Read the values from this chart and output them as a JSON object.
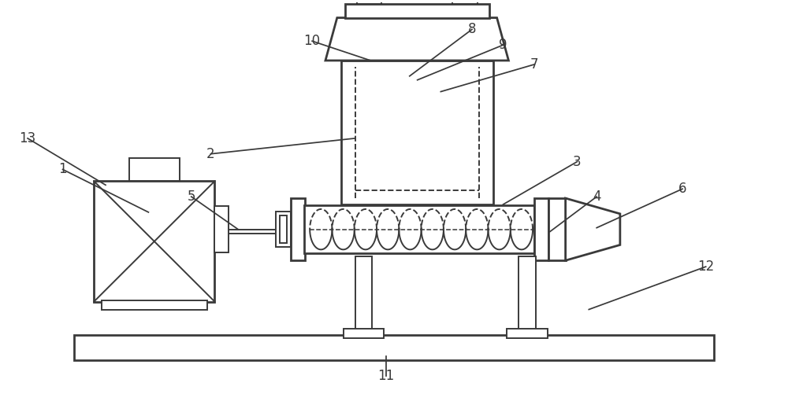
{
  "bg_color": "#ffffff",
  "line_color": "#3a3a3a",
  "lw": 1.4,
  "lw2": 2.0,
  "fig_width": 10.0,
  "fig_height": 5.15,
  "dpi": 100,
  "label_fontsize": 12
}
